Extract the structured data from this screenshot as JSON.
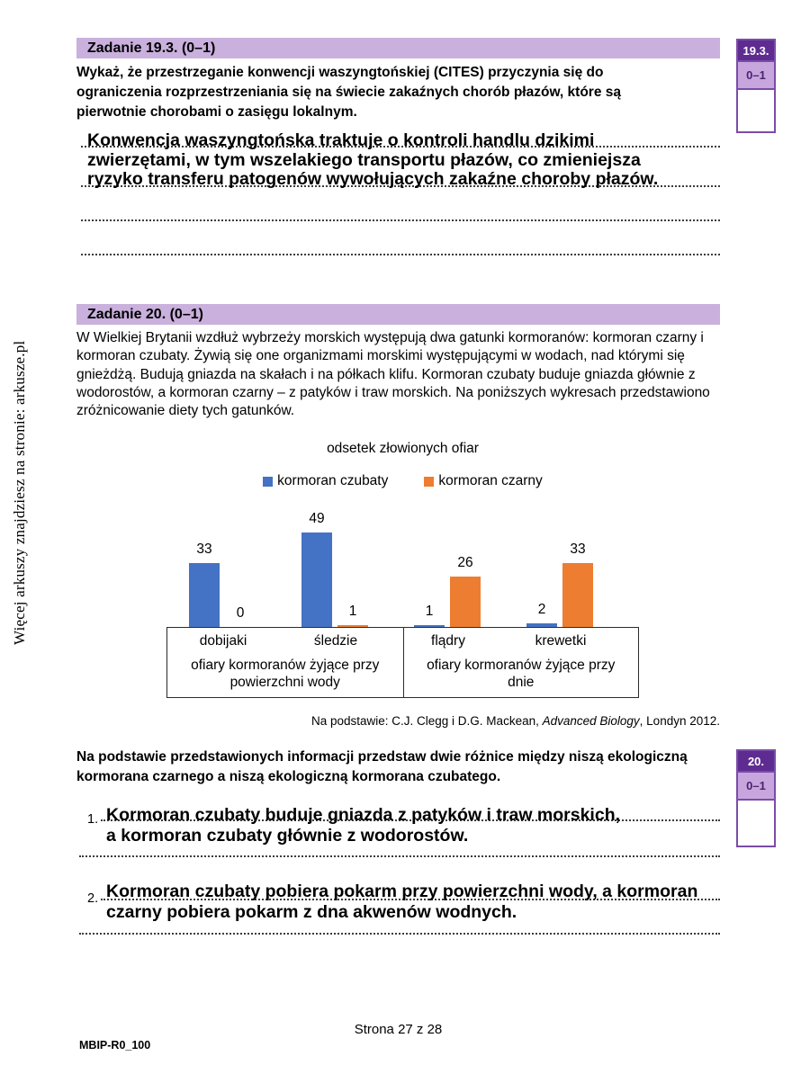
{
  "page": {
    "sidebar_text": "Więcej arkuszy znajdziesz na stronie: arkusze.pl",
    "footer": {
      "page_label": "Strona 27 z 28",
      "code": "MBIP-R0_100"
    }
  },
  "colors": {
    "header_bar": "#c9b0dd",
    "margin_dark_purple": "#5e2c90",
    "margin_light_purple": "#c7a6de",
    "margin_border": "#7a4ca8",
    "series_blue": "#4472C4",
    "series_orange": "#ED7D31"
  },
  "task19": {
    "header": "Zadanie 19.3. (0–1)",
    "question": "Wykaż, że przestrzeganie konwencji waszyngtońskiej (CITES) przyczynia się do ograniczenia rozprzestrzeniania się na świecie zakaźnych chorób płazów, które są pierwotnie chorobami o zasięgu lokalnym.",
    "answer_lines": [
      "Konwencja waszyngtońska traktuje o kontroli handlu dzikimi",
      "zwierzętami, w tym wszelakiego transportu płazów, co zmieniejsza",
      "ryzyko transferu patogenów wywołujących zakaźne choroby płazów."
    ],
    "margin_box": {
      "number": "19.3.",
      "points": "0–1"
    }
  },
  "task20": {
    "header": "Zadanie 20. (0–1)",
    "intro": "W Wielkiej Brytanii wzdłuż wybrzeży morskich występują dwa gatunki kormoranów: kormoran czarny i kormoran czubaty. Żywią się one organizmami morskimi występującymi w wodach, nad którymi się gnieżdżą. Budują gniazda na skałach i na półkach klifu. Kormoran czubaty buduje gniazda głównie z wodorostów, a kormoran czarny – z patyków i traw morskich. Na poniższych wykresach przedstawiono zróżnicowanie diety tych gatunków.",
    "source": {
      "prefix": "Na podstawie: C.J. Clegg i D.G. Mackean, ",
      "italic": "Advanced Biology",
      "suffix": ", Londyn 2012."
    },
    "question": "Na podstawie przedstawionych informacji przedstaw dwie różnice między niszą ekologiczną kormorana czarnego a niszą ekologiczną kormorana czubatego.",
    "answers": [
      {
        "number": "1.",
        "lines": [
          "Kormoran czubaty buduje gniazda z patyków i traw morskich,",
          "a kormoran czubaty głównie z wodorostów."
        ]
      },
      {
        "number": "2.",
        "lines": [
          "Kormoran czubaty pobiera pokarm przy powierzchni wody, a kormoran",
          "czarny pobiera pokarm z dna akwenów wodnych."
        ]
      }
    ],
    "margin_box": {
      "number": "20.",
      "points": "0–1"
    }
  },
  "chart_data": {
    "type": "bar",
    "title": "odsetek złowionych ofiar",
    "categories": [
      "dobijaki",
      "śledzie",
      "flądry",
      "krewetki"
    ],
    "series": [
      {
        "name": "kormoran czubaty",
        "color": "#4472C4",
        "values": [
          33,
          49,
          1,
          2
        ]
      },
      {
        "name": "kormoran czarny",
        "color": "#ED7D31",
        "values": [
          0,
          1,
          26,
          33
        ]
      }
    ],
    "groups": [
      {
        "label": "ofiary kormoranów żyjące przy powierzchni wody",
        "category_indexes": [
          0,
          1
        ]
      },
      {
        "label": "ofiary kormoranów żyjące przy dnie",
        "category_indexes": [
          2,
          3
        ]
      }
    ],
    "ylim": [
      0,
      49
    ],
    "xlabel": "",
    "ylabel": "",
    "grid": false,
    "legend_position": "top",
    "value_labels": true
  }
}
